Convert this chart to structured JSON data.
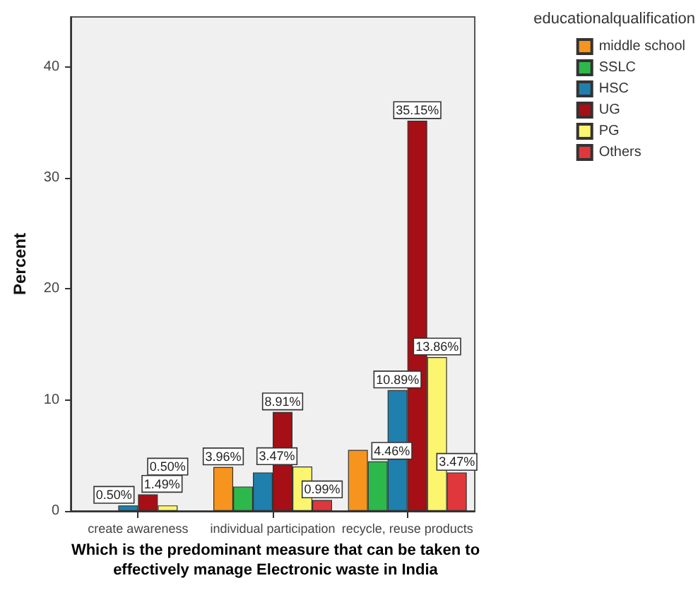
{
  "chart_data": {
    "type": "bar",
    "title": "Which is the predominant measure that can be taken to\neffectively manage Electronic waste in India",
    "ylabel": "Percent",
    "legend_title": "educationalqualification",
    "categories": [
      "create awareness",
      "individual participation",
      "recycle, reuse products"
    ],
    "series": [
      {
        "name": "middle school",
        "color": "#f7941d",
        "values": [
          null,
          3.96,
          5.5
        ],
        "value_labels": [
          null,
          "3.96%",
          null
        ]
      },
      {
        "name": "SSLC",
        "color": "#2db84b",
        "values": [
          null,
          2.2,
          4.46
        ],
        "value_labels": [
          null,
          null,
          "4.46%"
        ]
      },
      {
        "name": "HSC",
        "color": "#1f7fad",
        "values": [
          0.5,
          3.47,
          10.89
        ],
        "value_labels": [
          "0.50%",
          "3.47%",
          "10.89%"
        ]
      },
      {
        "name": "UG",
        "color": "#a50f15",
        "values": [
          1.49,
          8.91,
          35.15
        ],
        "value_labels": [
          "1.49%",
          "8.91%",
          "35.15%"
        ]
      },
      {
        "name": "PG",
        "color": "#fcf56e",
        "values": [
          0.5,
          4.0,
          13.86
        ],
        "value_labels": [
          "0.50%",
          null,
          "13.86%"
        ]
      },
      {
        "name": "Others",
        "color": "#e0373c",
        "values": [
          null,
          0.99,
          3.47
        ],
        "value_labels": [
          null,
          "0.99%",
          "3.47%"
        ]
      }
    ],
    "ylim": [
      0,
      44.5
    ],
    "yticks": [
      0,
      10,
      20,
      30,
      40
    ],
    "grid": false,
    "legend": "top right"
  }
}
